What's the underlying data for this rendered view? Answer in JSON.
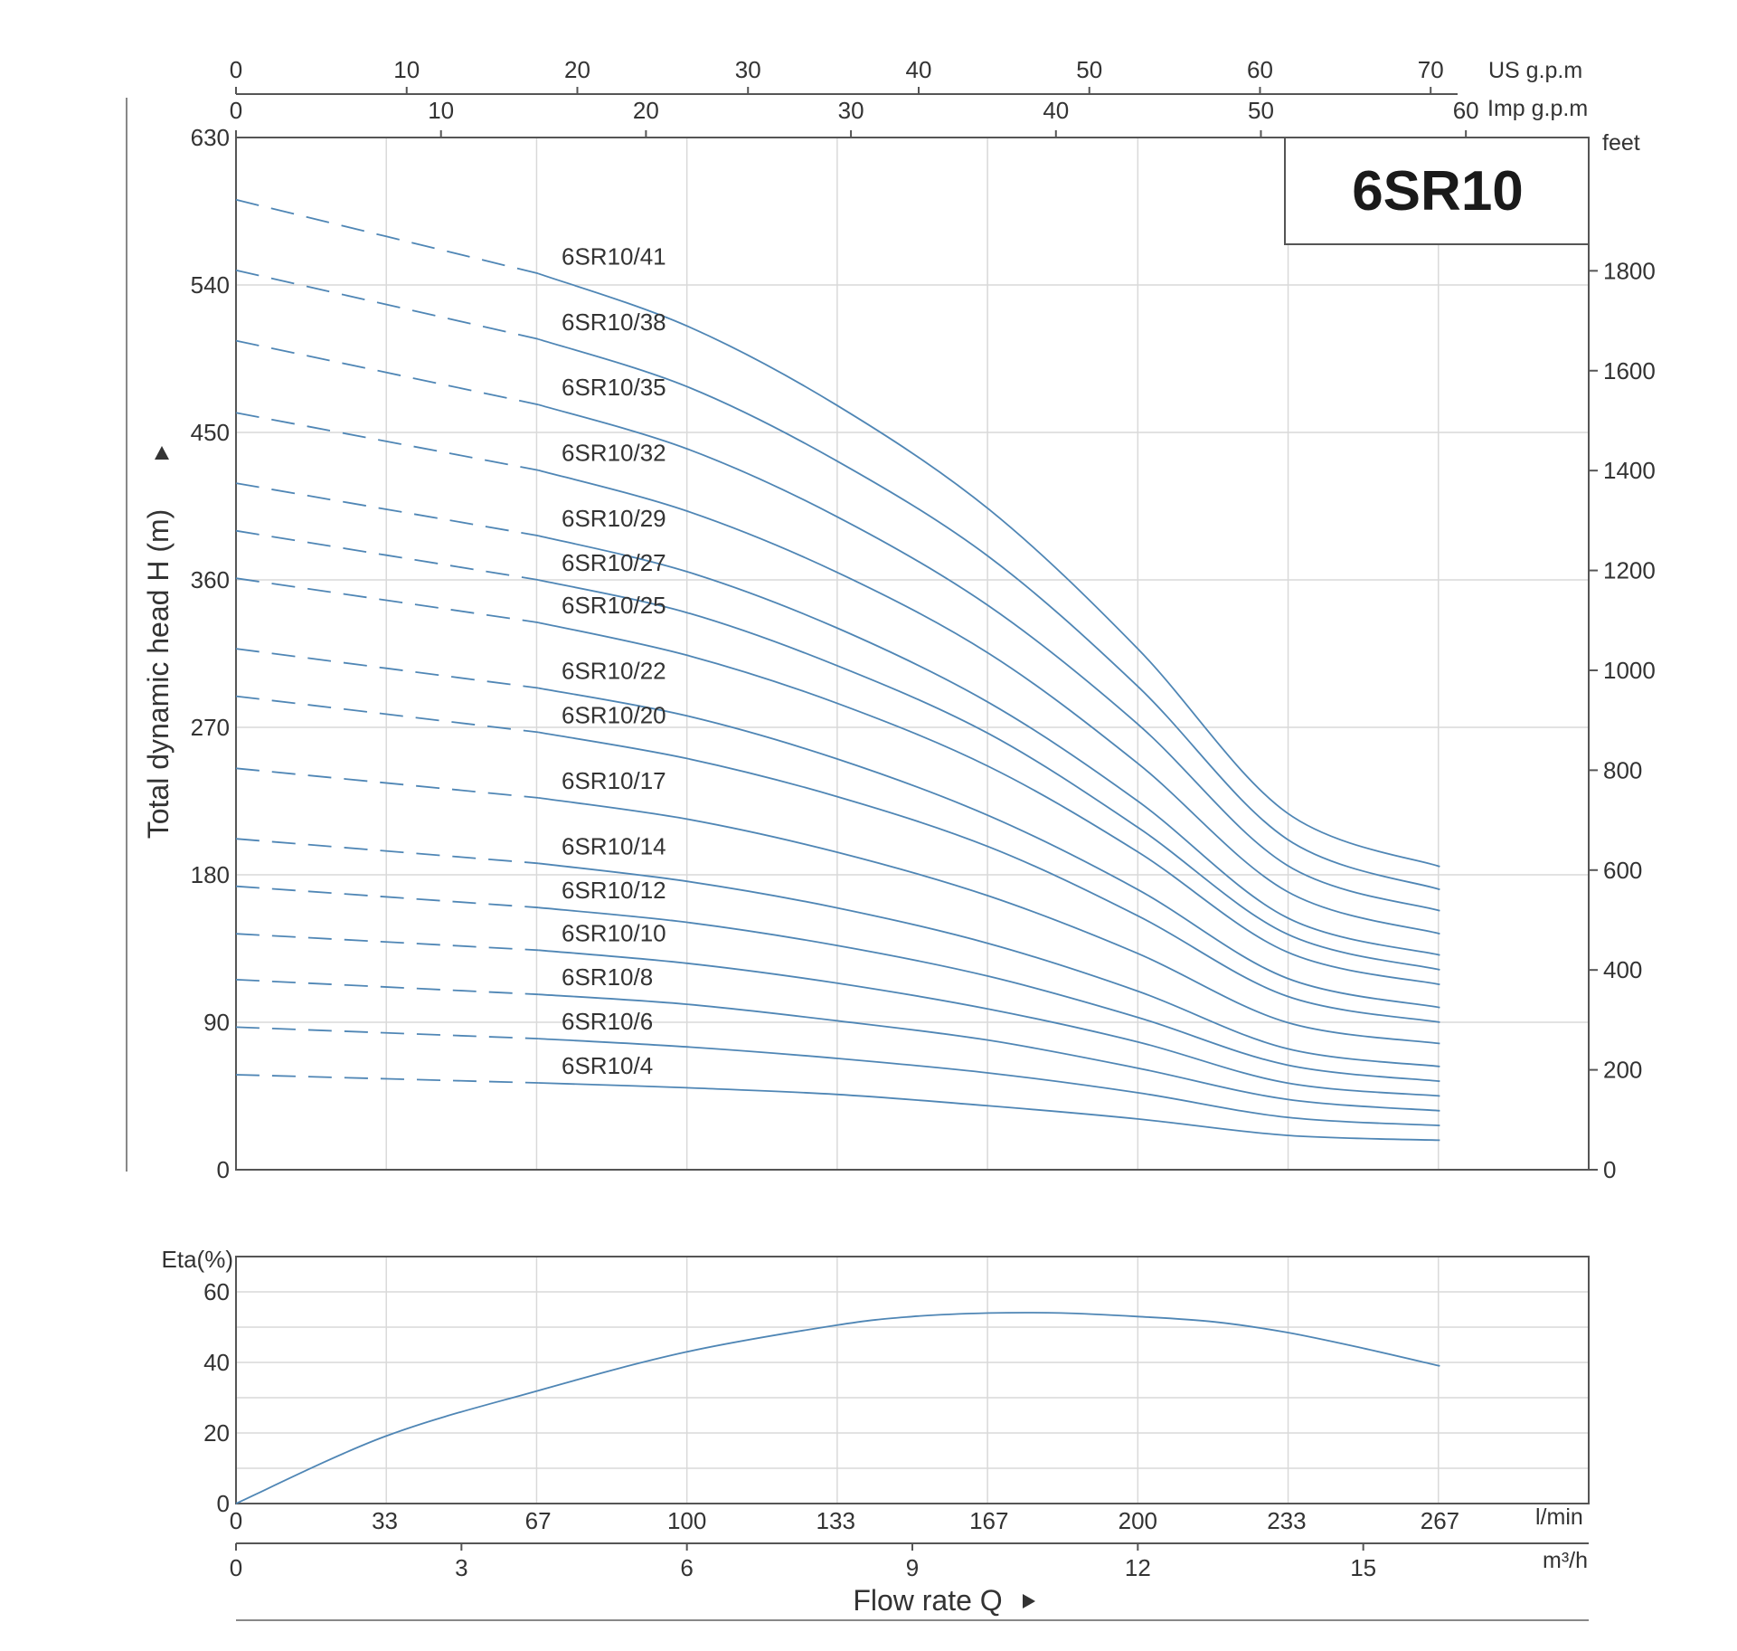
{
  "chart_data": [
    {
      "type": "line",
      "title": "6SR10",
      "ylabel": "Total dynamic head H (m)",
      "y_unit_right": "feet",
      "x_unit_top1": "US g.p.m",
      "x_unit_top2": "Imp g.p.m",
      "xlim_lmin": [
        0,
        300
      ],
      "ylim": [
        0,
        630
      ],
      "y_ticks": [
        "630",
        "540",
        "450",
        "360",
        "270",
        "180",
        "90",
        "0"
      ],
      "feet_ticks": [
        "1800",
        "1600",
        "1400",
        "1200",
        "1000",
        "800",
        "600",
        "400",
        "200",
        "0"
      ],
      "us_gpm_ticks": [
        "0",
        "10",
        "20",
        "30",
        "40",
        "50",
        "60",
        "70"
      ],
      "imp_gpm_ticks": [
        "0",
        "10",
        "20",
        "30",
        "40",
        "50",
        "60"
      ],
      "grid": true,
      "line_color": "#4f86b5",
      "dashed_below_lmin": 67,
      "series": [
        {
          "name": "6SR10/41",
          "x": [
            0,
            67,
            100,
            133,
            167,
            200,
            233,
            267
          ],
          "y": [
            592,
            547,
            515,
            467,
            403,
            318,
            218,
            185
          ]
        },
        {
          "name": "6SR10/38",
          "x": [
            0,
            67,
            100,
            133,
            167,
            200,
            233,
            267
          ],
          "y": [
            549,
            507,
            478,
            433,
            374,
            295,
            202,
            171
          ]
        },
        {
          "name": "6SR10/35",
          "x": [
            0,
            67,
            100,
            133,
            167,
            200,
            233,
            267
          ],
          "y": [
            506,
            467,
            440,
            399,
            344,
            272,
            186,
            158
          ]
        },
        {
          "name": "6SR10/32",
          "x": [
            0,
            67,
            100,
            133,
            167,
            200,
            233,
            267
          ],
          "y": [
            462,
            427,
            402,
            365,
            315,
            248,
            170,
            144
          ]
        },
        {
          "name": "6SR10/29",
          "x": [
            0,
            67,
            100,
            133,
            167,
            200,
            233,
            267
          ],
          "y": [
            419,
            387,
            365,
            331,
            285,
            225,
            154,
            131
          ]
        },
        {
          "name": "6SR10/27",
          "x": [
            0,
            67,
            100,
            133,
            167,
            200,
            233,
            267
          ],
          "y": [
            390,
            360,
            340,
            308,
            266,
            209,
            144,
            122
          ]
        },
        {
          "name": "6SR10/25",
          "x": [
            0,
            67,
            100,
            133,
            167,
            200,
            233,
            267
          ],
          "y": [
            361,
            334,
            314,
            285,
            246,
            194,
            133,
            113
          ]
        },
        {
          "name": "6SR10/22",
          "x": [
            0,
            67,
            100,
            133,
            167,
            200,
            233,
            267
          ],
          "y": [
            318,
            294,
            277,
            251,
            216,
            171,
            117,
            99
          ]
        },
        {
          "name": "6SR10/20",
          "x": [
            0,
            67,
            100,
            133,
            167,
            200,
            233,
            267
          ],
          "y": [
            289,
            267,
            251,
            228,
            197,
            155,
            106,
            90
          ]
        },
        {
          "name": "6SR10/17",
          "x": [
            0,
            67,
            100,
            133,
            167,
            200,
            233,
            267
          ],
          "y": [
            245,
            227,
            214,
            194,
            167,
            132,
            90,
            77
          ]
        },
        {
          "name": "6SR10/14",
          "x": [
            0,
            67,
            100,
            133,
            167,
            200,
            233,
            267
          ],
          "y": [
            202,
            187,
            176,
            160,
            138,
            109,
            74,
            63
          ]
        },
        {
          "name": "6SR10/12",
          "x": [
            0,
            67,
            100,
            133,
            167,
            200,
            233,
            267
          ],
          "y": [
            173,
            160,
            151,
            137,
            118,
            93,
            64,
            54
          ]
        },
        {
          "name": "6SR10/10",
          "x": [
            0,
            67,
            100,
            133,
            167,
            200,
            233,
            267
          ],
          "y": [
            144,
            134,
            126,
            114,
            98,
            78,
            53,
            45
          ]
        },
        {
          "name": "6SR10/8",
          "x": [
            0,
            67,
            100,
            133,
            167,
            200,
            233,
            267
          ],
          "y": [
            116,
            107,
            101,
            91,
            79,
            62,
            43,
            36
          ]
        },
        {
          "name": "6SR10/6",
          "x": [
            0,
            67,
            100,
            133,
            167,
            200,
            233,
            267
          ],
          "y": [
            87,
            80,
            75,
            68,
            59,
            47,
            32,
            27
          ]
        },
        {
          "name": "6SR10/4",
          "x": [
            0,
            67,
            100,
            133,
            167,
            200,
            233,
            267
          ],
          "y": [
            58,
            53,
            50,
            46,
            39,
            31,
            21,
            18
          ]
        }
      ]
    },
    {
      "type": "line",
      "ylabel": "Eta(%)",
      "ylim": [
        0,
        70
      ],
      "y_ticks": [
        "60",
        "40",
        "20",
        "0"
      ],
      "xlim_lmin": [
        0,
        300
      ],
      "x_ticks_lmin": [
        "0",
        "33",
        "67",
        "100",
        "133",
        "167",
        "200",
        "233",
        "267"
      ],
      "x_unit_lmin": "l/min",
      "x_ticks_m3h": [
        "0",
        "3",
        "6",
        "9",
        "12",
        "15"
      ],
      "x_unit_m3h": "m³/h",
      "xlabel": "Flow rate Q",
      "grid": true,
      "line_color": "#4f86b5",
      "series": [
        {
          "x": [
            0,
            33,
            67,
            100,
            133,
            150,
            167,
            183,
            200,
            217,
            233,
            250,
            267
          ],
          "y": [
            0,
            19,
            32,
            43,
            50.5,
            53,
            54,
            54,
            53,
            51.5,
            48.5,
            44,
            39
          ]
        }
      ]
    }
  ]
}
